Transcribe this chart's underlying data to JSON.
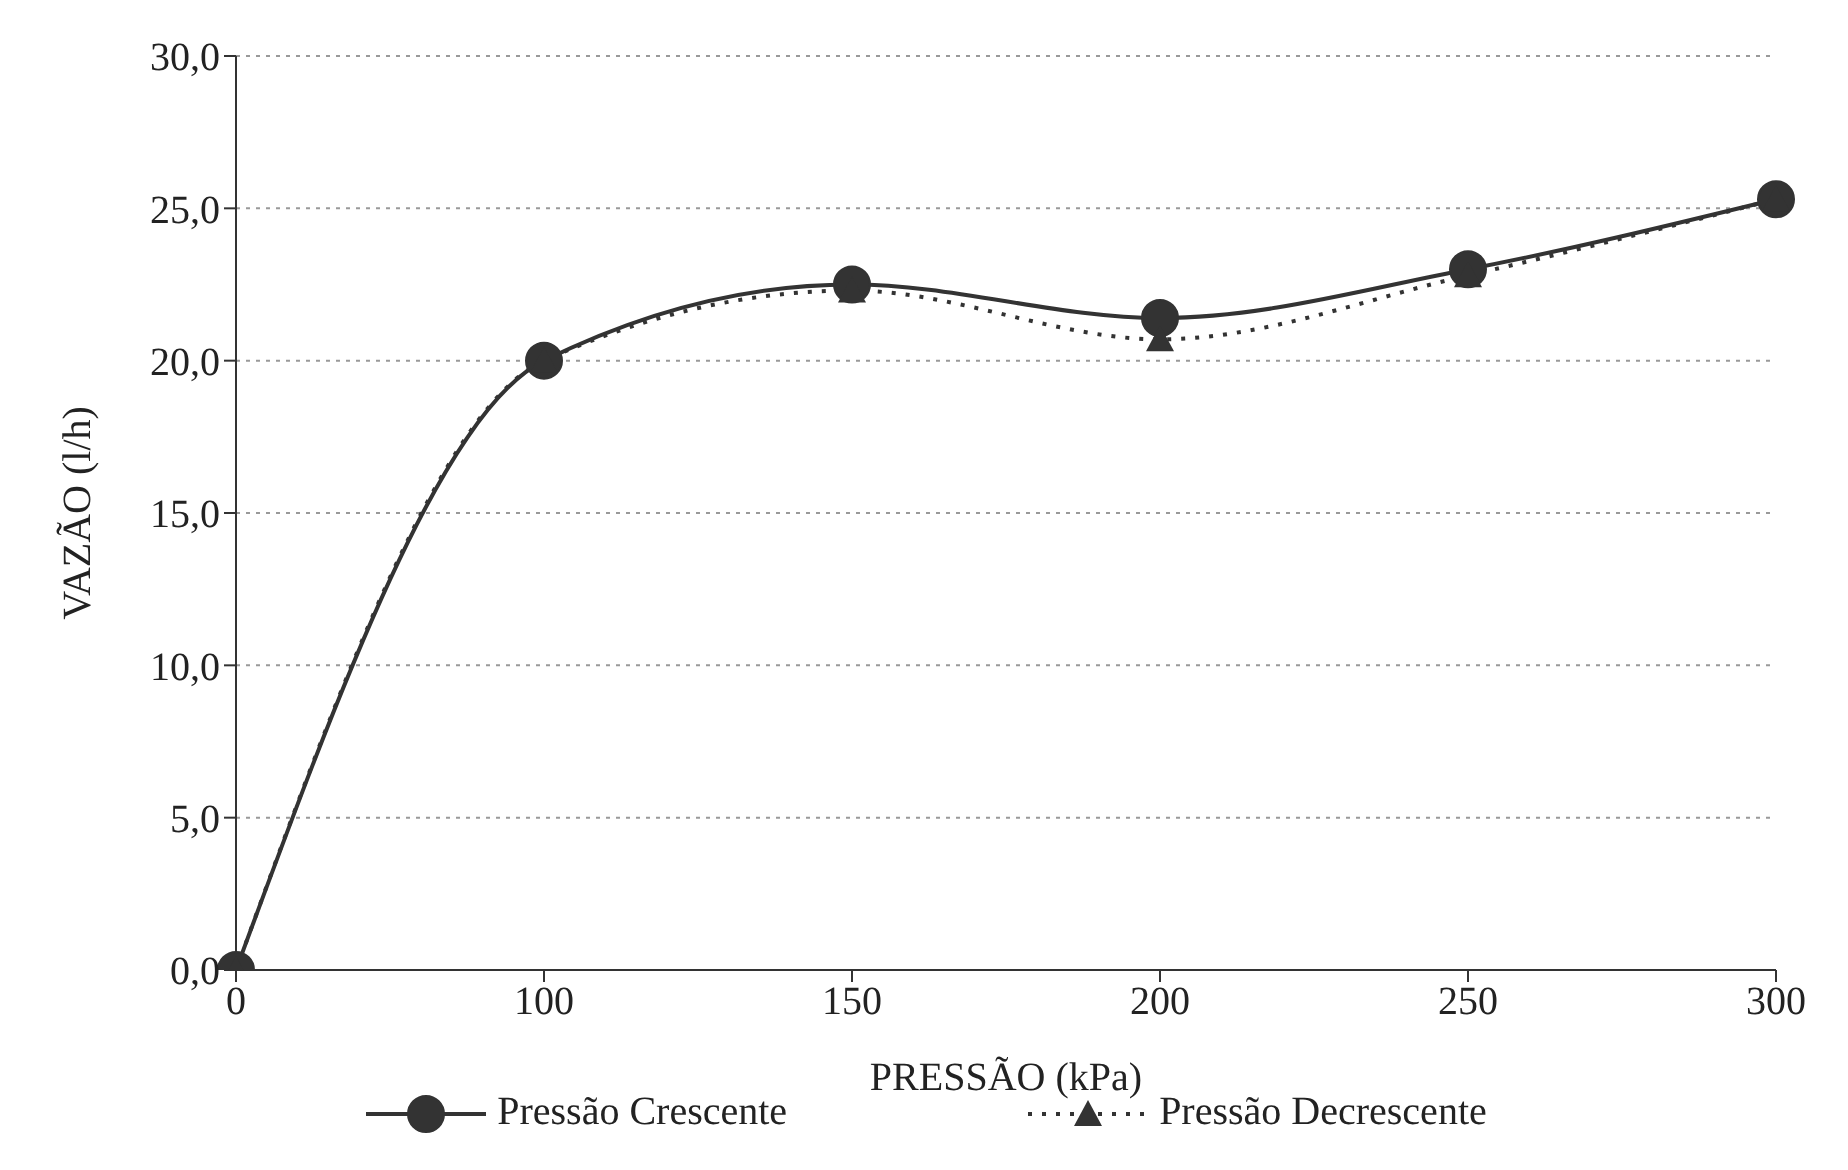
{
  "chart_data": {
    "type": "line",
    "xlabel": "PRESSÃO (kPa)",
    "ylabel": "VAZÃO (l/h)",
    "categories": [
      "0",
      "100",
      "150",
      "200",
      "250",
      "300"
    ],
    "ylim": [
      0,
      30
    ],
    "yticks": [
      {
        "value": 0,
        "label": "0,0"
      },
      {
        "value": 5,
        "label": "5,0"
      },
      {
        "value": 10,
        "label": "10,0"
      },
      {
        "value": 15,
        "label": "15,0"
      },
      {
        "value": 20,
        "label": "20,0"
      },
      {
        "value": 25,
        "label": "25,0"
      },
      {
        "value": 30,
        "label": "30,0"
      }
    ],
    "grid": "y",
    "legend": "bottom",
    "series": [
      {
        "name": "Pressão Crescente",
        "color": "#333333",
        "marker": "circle",
        "line_style": "solid",
        "values": [
          0,
          20.0,
          22.5,
          21.4,
          23.0,
          25.3
        ]
      },
      {
        "name": "Pressão Decrescente",
        "color": "#333333",
        "marker": "triangle",
        "line_style": "dotted",
        "values": [
          0,
          20.0,
          22.3,
          20.7,
          22.8,
          25.3
        ]
      }
    ]
  }
}
